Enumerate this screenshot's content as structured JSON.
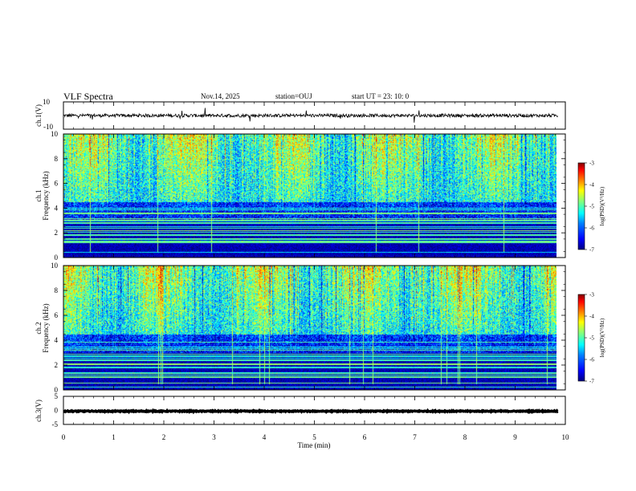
{
  "header": {
    "title": "VLF Spectra",
    "date": "Nov.14, 2025",
    "station": "station=OUJ",
    "start": "start  UT  =   23: 10: 0"
  },
  "chart_data": [
    {
      "type": "line",
      "name": "ch1-waveform",
      "ylabel": "ch.1(V)",
      "ylim": [
        -10,
        10
      ],
      "yticks": [
        10,
        -10
      ],
      "xlim": [
        0,
        10
      ],
      "baseline": 0,
      "noise_amplitude": 1.2
    },
    {
      "type": "heatmap",
      "name": "ch1-spectrogram",
      "ylabel": "ch.1\nFrequency  (kHz)",
      "ylim": [
        0,
        10
      ],
      "yticks": [
        0,
        2,
        4,
        6,
        8,
        10
      ],
      "xlim": [
        0,
        9.85
      ],
      "colorbar": {
        "label": "log(PSD)(V²/Hz)",
        "range": [
          -7,
          -3
        ],
        "ticks": [
          -3,
          -4,
          -5,
          -6,
          -7
        ]
      }
    },
    {
      "type": "heatmap",
      "name": "ch2-spectrogram",
      "ylabel": "ch.2\nFrequency  (kHz)",
      "ylim": [
        0,
        10
      ],
      "yticks": [
        0,
        2,
        4,
        6,
        8,
        10
      ],
      "xlim": [
        0,
        9.85
      ],
      "colorbar": {
        "label": "log(PSD)(V²/Hz)",
        "range": [
          -7,
          -3
        ],
        "ticks": [
          -3,
          -4,
          -5,
          -6,
          -7
        ]
      }
    },
    {
      "type": "line",
      "name": "ch3-waveform",
      "ylabel": "ch.3(V)",
      "ylim": [
        -5,
        5
      ],
      "yticks": [
        5,
        0,
        -5
      ],
      "xlim": [
        0,
        10
      ],
      "baseline": -0.3,
      "noise_amplitude": 0.15
    }
  ],
  "xaxis": {
    "label": "Time  (min)",
    "range": [
      0,
      10
    ],
    "ticks": [
      0,
      1,
      2,
      3,
      4,
      5,
      6,
      7,
      8,
      9,
      10
    ]
  },
  "colors": {
    "colormap": [
      "#000080",
      "#0000ff",
      "#0080ff",
      "#00ffff",
      "#80ff80",
      "#ffff00",
      "#ff8000",
      "#ff0000",
      "#800000"
    ]
  }
}
